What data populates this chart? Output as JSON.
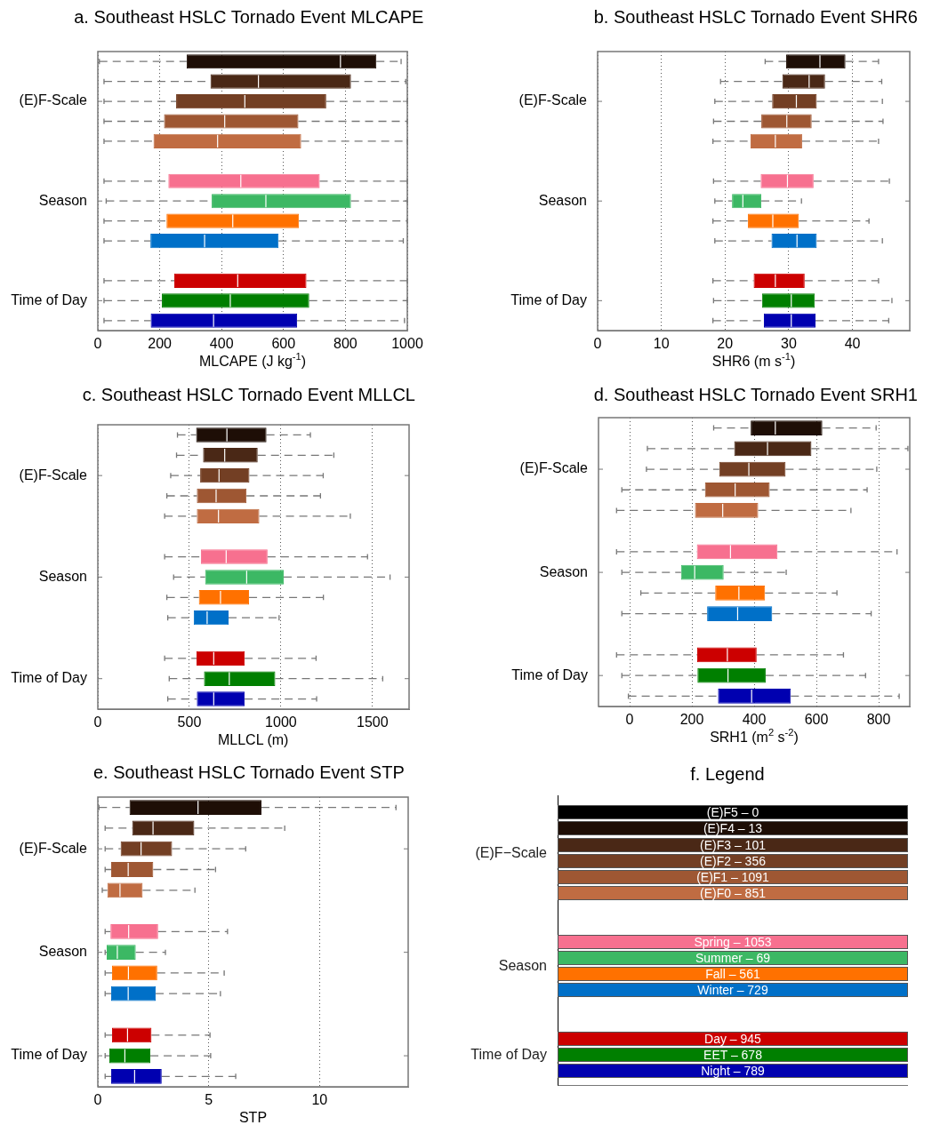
{
  "chart_data": [
    {
      "type": "box",
      "orientation": "horizontal",
      "title": "a. Southeast HSLC Tornado Event MLCAPE",
      "xlabel": "MLCAPE (J kg$^{-1}$)",
      "xlim": [
        0,
        1000
      ],
      "xticks": [
        0,
        200,
        400,
        600,
        800,
        1000
      ],
      "grid": "x",
      "categories": [
        null,
        null,
        "(E)F-Scale",
        null,
        null,
        null,
        null,
        "Season",
        null,
        null,
        null,
        null,
        "Time of Day",
        null
      ],
      "colors": [
        "#1e0e06",
        "#4a2816",
        "#733f24",
        "#9e5733",
        "#c06c42",
        null,
        "#f7708f",
        "#3cb864",
        "#ff7100",
        "#0070c8",
        null,
        "#cc0000",
        "#007f00",
        "#0000b0"
      ],
      "boxes": [
        {
          "low": 5,
          "q1": 287,
          "median": 784,
          "q3": 900,
          "high": 980
        },
        {
          "low": 20,
          "q1": 364,
          "median": 519,
          "q3": 818,
          "high": 995
        },
        {
          "low": 20,
          "q1": 253,
          "median": 475,
          "q3": 738,
          "high": 1000
        },
        {
          "low": 20,
          "q1": 214,
          "median": 410,
          "q3": 648,
          "high": 1000
        },
        {
          "low": 20,
          "q1": 180,
          "median": 387,
          "q3": 657,
          "high": 1000
        },
        null,
        {
          "low": 20,
          "q1": 228,
          "median": 462,
          "q3": 717,
          "high": 1000
        },
        {
          "low": 27,
          "q1": 368,
          "median": 543,
          "q3": 818,
          "high": 1000
        },
        {
          "low": 20,
          "q1": 222,
          "median": 436,
          "q3": 650,
          "high": 1000
        },
        {
          "low": 20,
          "q1": 170,
          "median": 345,
          "q3": 584,
          "high": 987
        },
        null,
        {
          "low": 20,
          "q1": 247,
          "median": 452,
          "q3": 674,
          "high": 1000
        },
        {
          "low": 20,
          "q1": 207,
          "median": 428,
          "q3": 683,
          "high": 1000
        },
        {
          "low": 20,
          "q1": 171,
          "median": 374,
          "q3": 644,
          "high": 991
        }
      ]
    },
    {
      "type": "box",
      "orientation": "horizontal",
      "title": "b. Southeast HSLC Tornado Event SHR6",
      "xlabel": "SHR6 (m s$^{-1}$)",
      "xlim": [
        0,
        49
      ],
      "xticks": [
        0,
        10,
        20,
        30,
        40
      ],
      "grid": "x",
      "categories": [
        null,
        null,
        "(E)F-Scale",
        null,
        null,
        null,
        null,
        "Season",
        null,
        null,
        null,
        null,
        "Time of Day",
        null
      ],
      "colors": [
        "#1e0e06",
        "#4a2816",
        "#733f24",
        "#9e5733",
        "#c06c42",
        null,
        "#f7708f",
        "#3cb864",
        "#ff7100",
        "#0070c8",
        null,
        "#cc0000",
        "#007f00",
        "#0000b0"
      ],
      "boxes": [
        {
          "low": 26.3,
          "q1": 29.6,
          "median": 34.9,
          "q3": 38.9,
          "high": 44.1
        },
        {
          "low": 19.3,
          "q1": 29.0,
          "median": 33.2,
          "q3": 35.7,
          "high": 44.6
        },
        {
          "low": 18.4,
          "q1": 27.4,
          "median": 31.2,
          "q3": 34.4,
          "high": 44.7
        },
        {
          "low": 18.2,
          "q1": 25.7,
          "median": 29.7,
          "q3": 33.6,
          "high": 44.8
        },
        {
          "low": 18.1,
          "q1": 24.0,
          "median": 27.9,
          "q3": 32.1,
          "high": 44.1
        },
        null,
        {
          "low": 18.2,
          "q1": 25.6,
          "median": 29.8,
          "q3": 33.9,
          "high": 45.8
        },
        {
          "low": 18.4,
          "q1": 21.1,
          "median": 22.8,
          "q3": 25.7,
          "high": 32.0
        },
        {
          "low": 18.1,
          "q1": 23.6,
          "median": 27.5,
          "q3": 31.6,
          "high": 42.6
        },
        {
          "low": 18.4,
          "q1": 27.3,
          "median": 31.3,
          "q3": 34.4,
          "high": 44.7
        },
        null,
        {
          "low": 18.1,
          "q1": 24.5,
          "median": 27.9,
          "q3": 32.5,
          "high": 44.1
        },
        {
          "low": 18.2,
          "q1": 25.8,
          "median": 30.4,
          "q3": 34.1,
          "high": 46.2
        },
        {
          "low": 18.1,
          "q1": 26.1,
          "median": 30.4,
          "q3": 34.2,
          "high": 45.7
        }
      ]
    },
    {
      "type": "box",
      "orientation": "horizontal",
      "title": "c. Southeast HSLC Tornado Event MLLCL",
      "xlabel": "MLLCL (m)",
      "xlim": [
        0,
        1700
      ],
      "xticks": [
        0,
        500,
        1000,
        1500
      ],
      "grid": "x",
      "categories": [
        null,
        null,
        "(E)F-Scale",
        null,
        null,
        null,
        null,
        "Season",
        null,
        null,
        null,
        null,
        "Time of Day",
        null
      ],
      "colors": [
        "#1e0e06",
        "#4a2816",
        "#733f24",
        "#9e5733",
        "#c06c42",
        null,
        "#f7708f",
        "#3cb864",
        "#ff7100",
        "#0070c8",
        null,
        "#cc0000",
        "#007f00",
        "#0000b0"
      ],
      "boxes": [
        {
          "low": 435,
          "q1": 537,
          "median": 705,
          "q3": 921,
          "high": 1161
        },
        {
          "low": 430,
          "q1": 575,
          "median": 693,
          "q3": 873,
          "high": 1289
        },
        {
          "low": 398,
          "q1": 559,
          "median": 662,
          "q3": 828,
          "high": 1231
        },
        {
          "low": 377,
          "q1": 541,
          "median": 646,
          "q3": 812,
          "high": 1216
        },
        {
          "low": 365,
          "q1": 541,
          "median": 659,
          "q3": 882,
          "high": 1379
        },
        null,
        {
          "low": 365,
          "q1": 563,
          "median": 701,
          "q3": 927,
          "high": 1473
        },
        {
          "low": 414,
          "q1": 586,
          "median": 813,
          "q3": 1015,
          "high": 1596
        },
        {
          "low": 377,
          "q1": 552,
          "median": 670,
          "q3": 826,
          "high": 1232
        },
        {
          "low": 382,
          "q1": 524,
          "median": 597,
          "q3": 714,
          "high": 990
        },
        null,
        {
          "low": 365,
          "q1": 539,
          "median": 633,
          "q3": 802,
          "high": 1192
        },
        {
          "low": 390,
          "q1": 580,
          "median": 718,
          "q3": 969,
          "high": 1556
        },
        {
          "low": 382,
          "q1": 541,
          "median": 633,
          "q3": 802,
          "high": 1195
        }
      ]
    },
    {
      "type": "box",
      "orientation": "horizontal",
      "title": "d. Southeast HSLC Tornado Event SRH1",
      "xlabel": "SRH1 (m$^{2}$ s$^{-2}$)",
      "xlim": [
        -100,
        900
      ],
      "xticks": [
        0,
        200,
        400,
        600,
        800
      ],
      "grid": "x",
      "categories": [
        null,
        null,
        "(E)F-Scale",
        null,
        null,
        null,
        null,
        "Season",
        null,
        null,
        null,
        null,
        "Time of Day",
        null
      ],
      "colors": [
        "#1e0e06",
        "#4a2816",
        "#733f24",
        "#9e5733",
        "#c06c42",
        null,
        "#f7708f",
        "#3cb864",
        "#ff7100",
        "#0070c8",
        null,
        "#cc0000",
        "#007f00",
        "#0000b0"
      ],
      "boxes": [
        {
          "low": 270,
          "q1": 389,
          "median": 468,
          "q3": 619,
          "high": 792
        },
        {
          "low": 57,
          "q1": 336,
          "median": 443,
          "q3": 584,
          "high": 894
        },
        {
          "low": 54,
          "q1": 288,
          "median": 383,
          "q3": 501,
          "high": 794
        },
        {
          "low": -25,
          "q1": 242,
          "median": 339,
          "q3": 450,
          "high": 763
        },
        {
          "low": -42,
          "q1": 210,
          "median": 299,
          "q3": 413,
          "high": 711
        },
        null,
        {
          "low": -42,
          "q1": 216,
          "median": 324,
          "q3": 475,
          "high": 859
        },
        {
          "low": -25,
          "q1": 165,
          "median": 209,
          "q3": 302,
          "high": 503
        },
        {
          "low": 36,
          "q1": 275,
          "median": 351,
          "q3": 435,
          "high": 666
        },
        {
          "low": -25,
          "q1": 249,
          "median": 347,
          "q3": 458,
          "high": 776
        },
        null,
        {
          "low": -42,
          "q1": 217,
          "median": 314,
          "q3": 408,
          "high": 687
        },
        {
          "low": -25,
          "q1": 218,
          "median": 316,
          "q3": 437,
          "high": 758
        },
        {
          "low": -4,
          "q1": 284,
          "median": 392,
          "q3": 518,
          "high": 866
        }
      ]
    },
    {
      "type": "box",
      "orientation": "horizontal",
      "title": "e. Southeast HSLC Tornado Event STP",
      "xlabel": "STP",
      "xlim": [
        0,
        14
      ],
      "xticks": [
        0,
        5,
        10
      ],
      "grid": "x",
      "categories": [
        null,
        null,
        "(E)F-Scale",
        null,
        null,
        null,
        null,
        "Season",
        null,
        null,
        null,
        null,
        "Time of Day",
        null
      ],
      "colors": [
        "#1e0e06",
        "#4a2816",
        "#733f24",
        "#9e5733",
        "#c06c42",
        null,
        "#f7708f",
        "#3cb864",
        "#ff7100",
        "#0070c8",
        null,
        "#cc0000",
        "#007f00",
        "#0000b0"
      ],
      "boxes": [
        {
          "low": 0.05,
          "q1": 1.43,
          "median": 4.52,
          "q3": 7.38,
          "high": 13.45
        },
        {
          "low": 0.33,
          "q1": 1.55,
          "median": 2.49,
          "q3": 4.35,
          "high": 8.43
        },
        {
          "low": 0.33,
          "q1": 1.03,
          "median": 1.95,
          "q3": 3.35,
          "high": 6.67
        },
        {
          "low": 0.33,
          "q1": 0.6,
          "median": 1.37,
          "q3": 2.5,
          "high": 5.31
        },
        {
          "low": 0.2,
          "q1": 0.43,
          "median": 1.0,
          "q3": 2.02,
          "high": 4.38
        },
        null,
        {
          "low": 0.33,
          "q1": 0.57,
          "median": 1.39,
          "q3": 2.72,
          "high": 5.85
        },
        {
          "low": 0.33,
          "q1": 0.4,
          "median": 0.88,
          "q3": 1.71,
          "high": 3.05
        },
        {
          "low": 0.33,
          "q1": 0.64,
          "median": 1.38,
          "q3": 2.68,
          "high": 5.7
        },
        {
          "low": 0.33,
          "q1": 0.6,
          "median": 1.37,
          "q3": 2.61,
          "high": 5.53
        },
        null,
        {
          "low": 0.33,
          "q1": 0.64,
          "median": 1.34,
          "q3": 2.42,
          "high": 5.06
        },
        {
          "low": 0.33,
          "q1": 0.52,
          "median": 1.22,
          "q3": 2.37,
          "high": 5.09
        },
        {
          "low": 0.33,
          "q1": 0.6,
          "median": 1.66,
          "q3": 2.88,
          "high": 6.22
        }
      ]
    },
    {
      "type": "other",
      "title": "f. Legend",
      "categories": [
        "(E)F5 – 0",
        "(E)F4 – 13",
        "(E)F3 – 101",
        "(E)F2 – 356",
        "(E)F1 – 1091",
        "(E)F0 – 851",
        null,
        null,
        "Spring – 1053",
        "Summer – 69",
        "Fall – 561",
        "Winter – 729",
        null,
        null,
        "Day – 945",
        "EET – 678",
        "Night – 789"
      ],
      "colors": [
        "#000000",
        "#1e0e06",
        "#4a2816",
        "#733f24",
        "#9e5733",
        "#c06c42",
        null,
        null,
        "#f7708f",
        "#3cb864",
        "#ff7100",
        "#0070c8",
        null,
        null,
        "#cc0000",
        "#007f00",
        "#0000b0"
      ],
      "annotations": [
        "(E)F−Scale",
        "Season",
        "Time of Day"
      ]
    }
  ]
}
